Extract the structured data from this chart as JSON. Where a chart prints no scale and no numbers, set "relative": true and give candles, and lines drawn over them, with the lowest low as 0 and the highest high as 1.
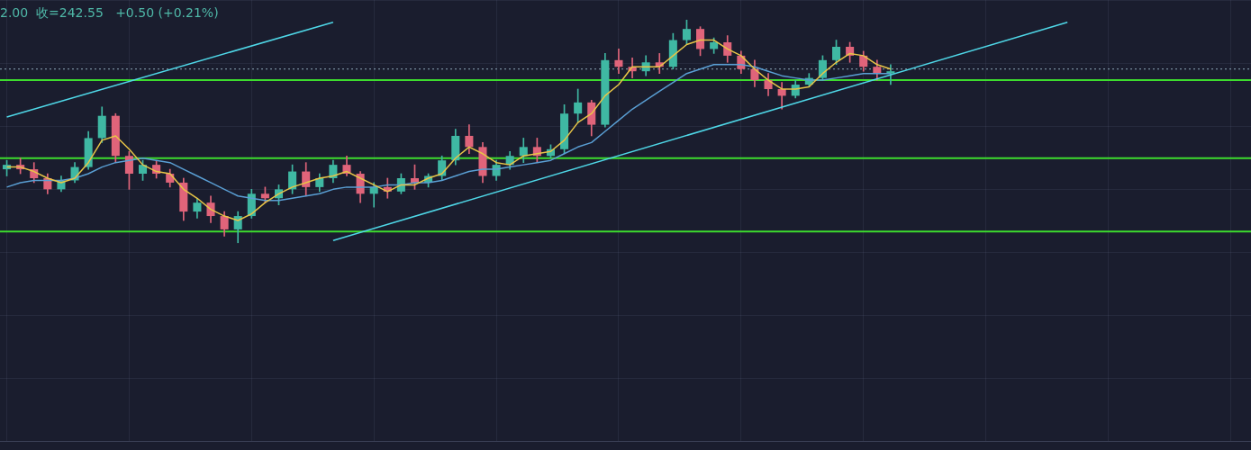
{
  "chart_data": {
    "type": "candlestick",
    "relative": true,
    "grid": true,
    "legend": false,
    "annotations": [
      "2.00  收=242.55   +0.50 (+0.21%)"
    ],
    "categories": [
      null,
      null,
      null,
      null,
      null,
      null,
      null,
      null,
      null,
      null,
      null,
      null,
      null,
      null,
      null,
      null,
      null,
      null,
      null,
      null,
      null,
      null,
      null,
      null,
      null,
      null,
      null,
      null,
      null,
      null,
      null,
      null,
      null,
      null,
      null,
      null,
      null,
      null,
      null,
      null,
      null,
      null,
      null,
      null,
      null,
      null,
      null,
      null,
      null,
      null,
      null,
      null,
      null,
      null,
      null,
      null,
      null,
      null,
      null,
      null,
      null,
      null,
      null,
      null,
      null,
      null,
      null,
      null,
      null,
      null,
      null,
      null,
      null,
      null,
      null,
      null,
      null,
      null,
      null,
      null,
      null,
      null,
      null,
      null,
      null,
      null,
      null,
      null,
      null,
      null,
      null,
      null
    ],
    "ohlc": [
      [
        0.33,
        0.37,
        0.3,
        0.35
      ],
      [
        0.35,
        0.38,
        0.31,
        0.33
      ],
      [
        0.33,
        0.36,
        0.27,
        0.29
      ],
      [
        0.29,
        0.31,
        0.22,
        0.24
      ],
      [
        0.24,
        0.3,
        0.23,
        0.28
      ],
      [
        0.28,
        0.36,
        0.27,
        0.34
      ],
      [
        0.34,
        0.5,
        0.33,
        0.47
      ],
      [
        0.47,
        0.61,
        0.45,
        0.57
      ],
      [
        0.57,
        0.58,
        0.36,
        0.39
      ],
      [
        0.39,
        0.41,
        0.24,
        0.31
      ],
      [
        0.31,
        0.37,
        0.28,
        0.35
      ],
      [
        0.35,
        0.37,
        0.29,
        0.31
      ],
      [
        0.31,
        0.33,
        0.25,
        0.27
      ],
      [
        0.27,
        0.29,
        0.1,
        0.14
      ],
      [
        0.14,
        0.2,
        0.11,
        0.18
      ],
      [
        0.18,
        0.21,
        0.09,
        0.12
      ],
      [
        0.12,
        0.14,
        0.03,
        0.06
      ],
      [
        0.06,
        0.14,
        0.0,
        0.12
      ],
      [
        0.12,
        0.24,
        0.11,
        0.22
      ],
      [
        0.22,
        0.25,
        0.18,
        0.2
      ],
      [
        0.2,
        0.26,
        0.17,
        0.24
      ],
      [
        0.24,
        0.35,
        0.22,
        0.32
      ],
      [
        0.32,
        0.36,
        0.21,
        0.25
      ],
      [
        0.25,
        0.31,
        0.23,
        0.29
      ],
      [
        0.29,
        0.37,
        0.27,
        0.35
      ],
      [
        0.35,
        0.39,
        0.3,
        0.31
      ],
      [
        0.31,
        0.32,
        0.18,
        0.22
      ],
      [
        0.22,
        0.27,
        0.16,
        0.25
      ],
      [
        0.25,
        0.29,
        0.2,
        0.23
      ],
      [
        0.23,
        0.31,
        0.22,
        0.29
      ],
      [
        0.29,
        0.35,
        0.24,
        0.27
      ],
      [
        0.27,
        0.31,
        0.25,
        0.3
      ],
      [
        0.3,
        0.39,
        0.28,
        0.37
      ],
      [
        0.37,
        0.51,
        0.35,
        0.48
      ],
      [
        0.48,
        0.53,
        0.4,
        0.43
      ],
      [
        0.43,
        0.45,
        0.27,
        0.3
      ],
      [
        0.3,
        0.37,
        0.28,
        0.35
      ],
      [
        0.35,
        0.41,
        0.33,
        0.39
      ],
      [
        0.39,
        0.47,
        0.36,
        0.43
      ],
      [
        0.43,
        0.47,
        0.36,
        0.39
      ],
      [
        0.39,
        0.44,
        0.38,
        0.42
      ],
      [
        0.42,
        0.62,
        0.4,
        0.58
      ],
      [
        0.58,
        0.69,
        0.54,
        0.63
      ],
      [
        0.63,
        0.64,
        0.48,
        0.53
      ],
      [
        0.53,
        0.85,
        0.52,
        0.82
      ],
      [
        0.82,
        0.87,
        0.76,
        0.79
      ],
      [
        0.79,
        0.83,
        0.74,
        0.77
      ],
      [
        0.77,
        0.84,
        0.75,
        0.81
      ],
      [
        0.81,
        0.85,
        0.76,
        0.79
      ],
      [
        0.79,
        0.94,
        0.78,
        0.91
      ],
      [
        0.91,
        1.0,
        0.89,
        0.96
      ],
      [
        0.96,
        0.97,
        0.84,
        0.87
      ],
      [
        0.87,
        0.92,
        0.85,
        0.9
      ],
      [
        0.9,
        0.93,
        0.81,
        0.84
      ],
      [
        0.84,
        0.86,
        0.76,
        0.78
      ],
      [
        0.78,
        0.82,
        0.7,
        0.73
      ],
      [
        0.73,
        0.76,
        0.66,
        0.69
      ],
      [
        0.69,
        0.72,
        0.6,
        0.66
      ],
      [
        0.66,
        0.73,
        0.65,
        0.71
      ],
      [
        0.71,
        0.76,
        0.7,
        0.74
      ],
      [
        0.74,
        0.84,
        0.73,
        0.82
      ],
      [
        0.82,
        0.91,
        0.8,
        0.88
      ],
      [
        0.88,
        0.9,
        0.81,
        0.84
      ],
      [
        0.84,
        0.86,
        0.77,
        0.79
      ],
      [
        0.79,
        0.82,
        0.73,
        0.76
      ],
      [
        0.76,
        0.8,
        0.71,
        0.77
      ],
      null,
      null,
      null,
      null,
      null,
      null,
      null,
      null,
      null,
      null,
      null,
      null,
      null,
      null,
      null,
      null,
      null,
      null,
      null,
      null,
      null,
      null,
      null,
      null,
      null,
      null
    ],
    "series": [
      {
        "type": "line",
        "color": "#e8c547",
        "values": [
          0.34,
          0.34,
          0.32,
          0.29,
          0.27,
          0.29,
          0.36,
          0.46,
          0.48,
          0.42,
          0.35,
          0.32,
          0.31,
          0.24,
          0.2,
          0.15,
          0.12,
          0.1,
          0.13,
          0.18,
          0.22,
          0.25,
          0.27,
          0.29,
          0.3,
          0.32,
          0.29,
          0.26,
          0.23,
          0.26,
          0.26,
          0.29,
          0.31,
          0.38,
          0.43,
          0.4,
          0.36,
          0.35,
          0.39,
          0.4,
          0.41,
          0.46,
          0.54,
          0.58,
          0.66,
          0.71,
          0.79,
          0.79,
          0.79,
          0.84,
          0.89,
          0.91,
          0.91,
          0.87,
          0.84,
          0.78,
          0.73,
          0.69,
          0.69,
          0.7,
          0.76,
          0.81,
          0.85,
          0.84,
          0.8,
          0.78,
          null,
          null,
          null,
          null,
          null,
          null,
          null,
          null,
          null,
          null,
          null,
          null,
          null,
          null,
          null,
          null,
          null,
          null,
          null,
          null,
          null,
          null,
          null,
          null,
          null,
          null
        ]
      },
      {
        "type": "line",
        "color": "#5a9fd4",
        "values": [
          0.25,
          0.27,
          0.28,
          0.28,
          0.28,
          0.29,
          0.31,
          0.34,
          0.36,
          0.37,
          0.38,
          0.37,
          0.36,
          0.33,
          0.3,
          0.27,
          0.24,
          0.21,
          0.2,
          0.19,
          0.19,
          0.2,
          0.21,
          0.22,
          0.24,
          0.25,
          0.25,
          0.25,
          0.26,
          0.26,
          0.27,
          0.27,
          0.28,
          0.3,
          0.32,
          0.33,
          0.33,
          0.34,
          0.35,
          0.36,
          0.37,
          0.4,
          0.43,
          0.45,
          0.5,
          0.55,
          0.6,
          0.64,
          0.68,
          0.72,
          0.76,
          0.78,
          0.8,
          0.8,
          0.8,
          0.79,
          0.77,
          0.75,
          0.74,
          0.73,
          0.73,
          0.74,
          0.75,
          0.76,
          0.76,
          0.76,
          null,
          null,
          null,
          null,
          null,
          null,
          null,
          null,
          null,
          null,
          null,
          null,
          null,
          null,
          null,
          null,
          null,
          null,
          null,
          null,
          null,
          null,
          null,
          null,
          null,
          null
        ]
      },
      {
        "type": "line",
        "color": "#4fd8e8",
        "values": [
          0.565,
          null,
          null,
          null,
          null,
          null,
          null,
          null,
          null,
          null,
          null,
          null,
          null,
          null,
          null,
          null,
          null,
          null,
          null,
          null,
          null,
          null,
          null,
          null,
          0.99,
          null,
          null,
          null,
          null,
          null,
          null,
          null,
          null,
          null,
          null,
          null,
          null,
          null,
          null,
          null,
          null,
          null,
          null,
          null,
          null,
          null,
          null,
          null,
          null,
          null,
          null,
          null,
          null,
          null,
          null,
          null,
          null,
          null,
          null,
          null,
          null,
          null,
          null,
          null,
          null,
          null,
          null,
          null,
          null,
          null,
          null,
          null,
          null,
          null,
          null,
          null,
          null,
          null,
          null,
          null,
          null,
          null,
          null,
          null,
          null,
          null,
          null,
          null,
          null,
          null,
          null,
          null
        ]
      },
      {
        "type": "line",
        "color": "#4fd8e8",
        "values": [
          null,
          null,
          null,
          null,
          null,
          null,
          null,
          null,
          null,
          null,
          null,
          null,
          null,
          null,
          null,
          null,
          null,
          null,
          null,
          null,
          null,
          null,
          null,
          null,
          0.01,
          null,
          null,
          null,
          null,
          null,
          null,
          null,
          null,
          null,
          null,
          null,
          null,
          null,
          null,
          null,
          null,
          null,
          null,
          null,
          null,
          null,
          null,
          null,
          null,
          null,
          null,
          null,
          null,
          null,
          null,
          null,
          null,
          null,
          null,
          null,
          null,
          null,
          null,
          null,
          null,
          null,
          null,
          null,
          null,
          null,
          null,
          null,
          null,
          null,
          null,
          null,
          null,
          null,
          0.99,
          null,
          null,
          null,
          null,
          null,
          null,
          null,
          null,
          null,
          null,
          null,
          null,
          null
        ]
      }
    ],
    "ref_lines": [
      {
        "axis": "y",
        "value": 0.78,
        "color": "#8fa8b8",
        "line_style": "dotted"
      },
      {
        "axis": "y",
        "value": 0.73,
        "color": "#3ddc2e"
      },
      {
        "axis": "y",
        "value": 0.38,
        "color": "#3ddc2e"
      },
      {
        "axis": "y",
        "value": 0.05,
        "color": "#3ddc2e"
      }
    ]
  }
}
